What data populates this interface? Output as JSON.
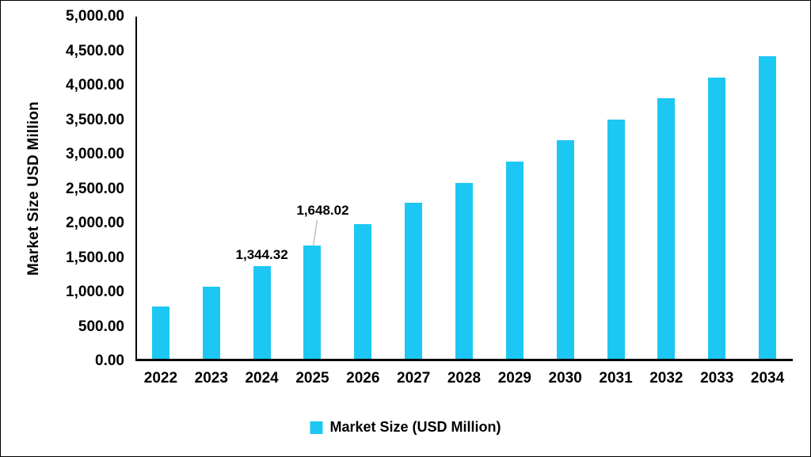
{
  "chart_data": {
    "type": "bar",
    "title": "",
    "xlabel": "",
    "ylabel": "Market Size USD Million",
    "categories": [
      "2022",
      "2023",
      "2024",
      "2025",
      "2026",
      "2027",
      "2028",
      "2029",
      "2030",
      "2031",
      "2032",
      "2033",
      "2034"
    ],
    "series": [
      {
        "name": "Market Size (USD Million)",
        "color": "#1DC7F3",
        "values": [
          755,
          1045,
          1344.32,
          1648.02,
          1955,
          2265,
          2555,
          2865,
          3170,
          3475,
          3780,
          4080,
          4395
        ]
      }
    ],
    "ylim": [
      0,
      5000
    ],
    "ytick_step": 500,
    "ytick_labels": [
      "0.00",
      "500.00",
      "1,000.00",
      "1,500.00",
      "2,000.00",
      "2,500.00",
      "3,000.00",
      "3,500.00",
      "4,000.00",
      "4,500.00",
      "5,000.00"
    ],
    "grid": false,
    "legend_position": "bottom",
    "legend": {
      "swatch_color": "#1DC7F3",
      "label": "Market Size (USD Million)"
    },
    "annotations": [
      {
        "category": "2024",
        "text": "1,344.32",
        "dx": 0,
        "dy": 0,
        "leader_line": false
      },
      {
        "category": "2025",
        "text": "1,648.02",
        "dx": 13,
        "dy": -30,
        "leader_line": true
      }
    ],
    "colors": {
      "axis": "#000000",
      "text": "#000000",
      "leader_line": "#BFBFBF",
      "background": "#FFFFFF"
    }
  }
}
